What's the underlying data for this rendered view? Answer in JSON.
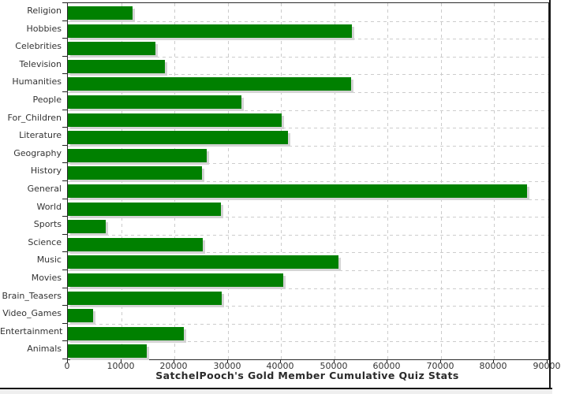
{
  "chart_data": {
    "type": "bar",
    "orientation": "horizontal",
    "title": "SatchelPooch's Gold Member Cumulative Quiz Stats",
    "categories": [
      "Religion",
      "Hobbies",
      "Celebrities",
      "Television",
      "Humanities",
      "People",
      "For_Children",
      "Literature",
      "Geography",
      "History",
      "General",
      "World",
      "Sports",
      "Science",
      "Music",
      "Movies",
      "Brain_Teasers",
      "Video_Games",
      "Entertainment",
      "Animals"
    ],
    "values": [
      12100,
      53300,
      16400,
      18200,
      53100,
      32600,
      40200,
      41300,
      26100,
      25200,
      86200,
      28800,
      7100,
      25300,
      50800,
      40400,
      28900,
      4800,
      21700,
      14800
    ],
    "xlabel": "",
    "ylabel": "",
    "xlim": [
      0,
      90200
    ],
    "x_ticks": [
      0,
      10000,
      20000,
      30000,
      40000,
      50000,
      60000,
      70000,
      80000,
      90000
    ],
    "x_tick_labels": [
      "0",
      "10000",
      "20000",
      "30000",
      "40000",
      "50000",
      "60000",
      "70000",
      "80000",
      "90000"
    ],
    "grid": "dashed light-gray: vertical at every 10000, horizontal at category boundaries",
    "legend": "none",
    "colors": {
      "bar": "#008000",
      "bar_shadow": "#d4d4d4",
      "gridline": "#cccccc",
      "axis": "#222222",
      "label_text": "#333333",
      "title_text": "#2b2b2b",
      "background": "#ffffff",
      "bottom_strip": "#efefef",
      "frame": "#151515"
    }
  }
}
